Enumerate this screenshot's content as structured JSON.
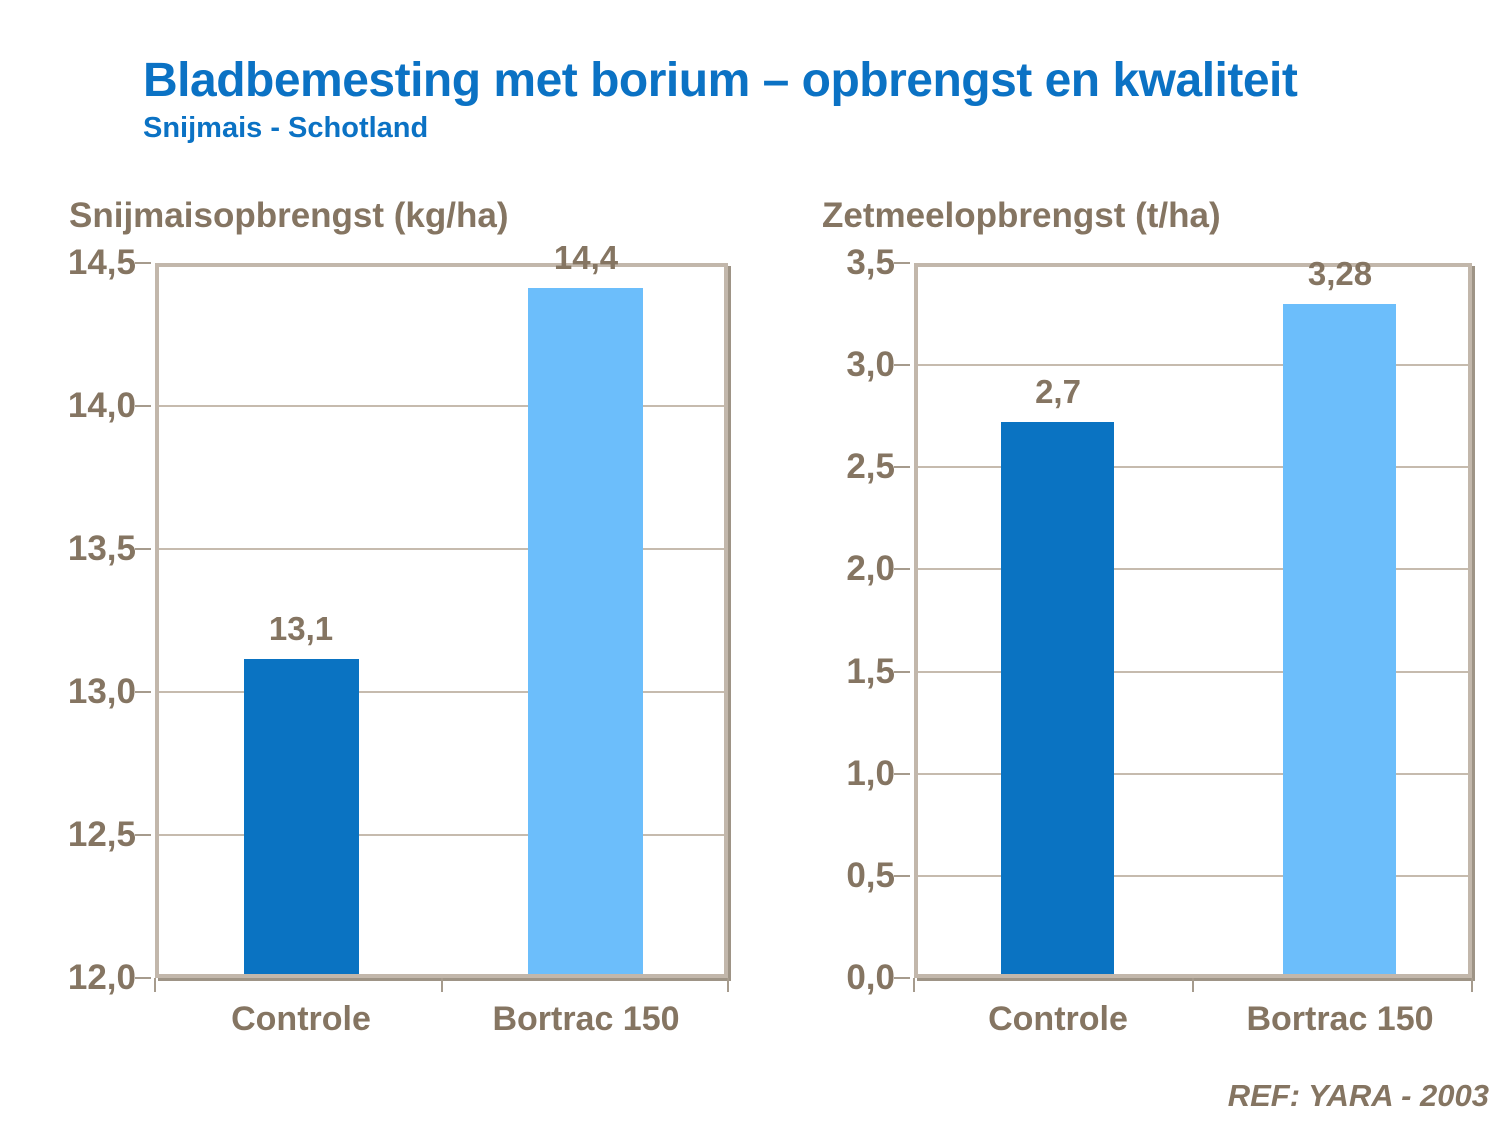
{
  "page": {
    "title": "Bladbemesting met borium – opbrengst en kwaliteit",
    "subtitle": "Snijmais - Schotland",
    "footer": "REF: YARA - 2003"
  },
  "colors": {
    "title_blue": "#0b72c4",
    "bar_dark_blue": "#0a73c2",
    "bar_light_blue": "#6cbefb",
    "axis_text": "#857562",
    "frame": "#c2b7ab",
    "frame_shadow": "#9e9486",
    "gridline": "#c6bbae"
  },
  "chart_data": [
    {
      "type": "bar",
      "title": "Snijmaisopbrengst (kg/ha)",
      "categories": [
        "Controle",
        "Bortrac 150"
      ],
      "values": [
        13.1,
        14.4
      ],
      "value_labels": [
        "13,1",
        "14,4"
      ],
      "bar_colors": [
        "#0a73c2",
        "#6cbefb"
      ],
      "ylim": [
        12.0,
        14.5
      ],
      "ytick_step": 0.5,
      "ytick_labels": [
        "14,5",
        "14,0",
        "13,5",
        "13,0",
        "12,5",
        "12,0"
      ],
      "grid": true,
      "legend": "none"
    },
    {
      "type": "bar",
      "title": "Zetmeelopbrengst (t/ha)",
      "categories": [
        "Controle",
        "Bortrac 150"
      ],
      "values": [
        2.7,
        3.28
      ],
      "value_labels": [
        "2,7",
        "3,28"
      ],
      "bar_colors": [
        "#0a73c2",
        "#6cbefb"
      ],
      "ylim": [
        0.0,
        3.5
      ],
      "ytick_step": 0.5,
      "ytick_labels": [
        "3,5",
        "3,0",
        "2,5",
        "2,0",
        "1,5",
        "1,0",
        "0,5",
        "0,0"
      ],
      "grid": true,
      "legend": "none"
    }
  ]
}
